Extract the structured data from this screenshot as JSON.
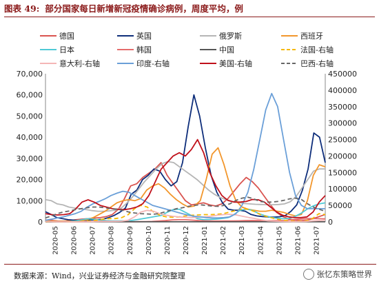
{
  "header": {
    "label": "图表 49:",
    "title": "部分国家每日新增新冠疫情确诊病例，周度平均，例"
  },
  "footer": {
    "source": "数据来源：Wind，兴业证券经济与金融研究院整理",
    "watermark": "张忆东策略世界"
  },
  "chart_data": {
    "type": "line",
    "x_labels": [
      "2020-05",
      "2020-06",
      "2020-07",
      "2020-08",
      "2020-09",
      "2020-10",
      "2020-11",
      "2020-12",
      "2021-01",
      "2021-02",
      "2021-03",
      "2021-04",
      "2021-05",
      "2021-06",
      "2021-07"
    ],
    "left_axis": {
      "min": 0,
      "max": 70000,
      "ticks": [
        0,
        10000,
        20000,
        30000,
        40000,
        50000,
        60000,
        70000
      ]
    },
    "right_axis": {
      "min": 0,
      "max": 450000,
      "ticks": [
        0,
        50000,
        100000,
        150000,
        200000,
        250000,
        300000,
        350000,
        400000,
        450000
      ]
    },
    "grid": false,
    "legend_position": "top",
    "series": [
      {
        "name": "德国",
        "color": "#d9534f",
        "dash": "",
        "axis": "left",
        "values": [
          900,
          700,
          400,
          350,
          600,
          1000,
          1300,
          1500,
          1800,
          2000,
          2500,
          3500,
          6000,
          11000,
          17000,
          18000,
          21000,
          23000,
          25000,
          28000,
          22000,
          18000,
          14000,
          10000,
          8000,
          8500,
          9000,
          8000,
          7500,
          8500,
          11000,
          14500,
          18000,
          21000,
          19000,
          16000,
          12000,
          8000,
          4500,
          2500,
          1400,
          800,
          600,
          800,
          1500,
          2500,
          3500
        ]
      },
      {
        "name": "英国",
        "color": "#0d2d7a",
        "dash": "",
        "axis": "left",
        "values": [
          4800,
          3500,
          2000,
          1500,
          1000,
          800,
          600,
          700,
          900,
          1000,
          1200,
          2000,
          3000,
          4500,
          6500,
          13000,
          15000,
          20000,
          22000,
          25000,
          24000,
          20000,
          17000,
          19000,
          28000,
          45000,
          60000,
          50000,
          35000,
          22000,
          14000,
          9000,
          6000,
          5500,
          5500,
          5000,
          3500,
          2800,
          2500,
          2300,
          2200,
          2400,
          3000,
          5000,
          8000,
          15000,
          25000,
          42000,
          40000,
          28000
        ]
      },
      {
        "name": "俄罗斯",
        "color": "#b5b5b5",
        "dash": "",
        "axis": "left",
        "values": [
          10500,
          10000,
          8500,
          8000,
          7000,
          6500,
          6200,
          5800,
          5300,
          5000,
          5000,
          5200,
          5500,
          6500,
          9000,
          12000,
          15500,
          19000,
          22000,
          25000,
          27500,
          28500,
          28000,
          26000,
          24000,
          22000,
          20000,
          17500,
          15000,
          13000,
          11500,
          10500,
          9700,
          9200,
          8700,
          8500,
          8300,
          8200,
          8100,
          8100,
          8200,
          8500,
          9500,
          12000,
          16000,
          20000,
          24000,
          25000,
          25000
        ]
      },
      {
        "name": "西班牙",
        "color": "#f2962b",
        "dash": "",
        "axis": "left",
        "values": [
          400,
          350,
          300,
          300,
          300,
          400,
          600,
          1000,
          2000,
          3500,
          5000,
          7000,
          9000,
          10000,
          10500,
          10000,
          11000,
          15000,
          17000,
          18000,
          16000,
          13000,
          10500,
          8500,
          7000,
          7500,
          10000,
          20000,
          32000,
          35000,
          27000,
          17000,
          10000,
          7000,
          6000,
          5500,
          5000,
          5000,
          5500,
          5000,
          4500,
          3500,
          2800,
          3500,
          10000,
          22000,
          27000,
          26000
        ]
      },
      {
        "name": "日本",
        "color": "#4fc9d6",
        "dash": "",
        "axis": "left",
        "values": [
          50,
          50,
          50,
          50,
          100,
          500,
          1000,
          1500,
          1200,
          800,
          600,
          500,
          500,
          500,
          600,
          1000,
          1500,
          2000,
          2500,
          3000,
          4500,
          5800,
          6000,
          4500,
          3000,
          1500,
          1000,
          1100,
          1300,
          1600,
          2000,
          3500,
          5500,
          6000,
          5500,
          4000,
          3000,
          2200,
          1700,
          1500,
          1600,
          2500,
          4000,
          6000,
          7500,
          8500,
          9000
        ]
      },
      {
        "name": "韩国",
        "color": "#e56b6b",
        "dash": "",
        "axis": "left",
        "values": [
          30,
          40,
          50,
          40,
          40,
          50,
          50,
          100,
          250,
          300,
          200,
          120,
          100,
          80,
          100,
          120,
          200,
          400,
          600,
          900,
          1000,
          1000,
          800,
          600,
          450,
          400,
          400,
          420,
          450,
          500,
          600,
          650,
          600,
          550,
          550,
          600,
          700,
          1000,
          1300,
          1500,
          1600,
          1500,
          1400
        ]
      },
      {
        "name": "中国",
        "color": "#555555",
        "dash": "",
        "axis": "left",
        "values": [
          20,
          20,
          20,
          20,
          20,
          20,
          20,
          20,
          20,
          20,
          20,
          20,
          20,
          20,
          20,
          20,
          20,
          20,
          20,
          20,
          20,
          20,
          20,
          20,
          20,
          20,
          20,
          20,
          20,
          20,
          20,
          20,
          20,
          20,
          20,
          20,
          20,
          20,
          20,
          20,
          20,
          20,
          20,
          20,
          20,
          20,
          20,
          20,
          20
        ]
      },
      {
        "name": "法国-右轴",
        "color": "#f5b800",
        "dash": "6,4",
        "axis": "right",
        "values": [
          900,
          700,
          500,
          400,
          500,
          700,
          1500,
          3000,
          5000,
          8000,
          10000,
          10000,
          13000,
          22000,
          40000,
          50000,
          45000,
          30000,
          20000,
          15000,
          14000,
          15000,
          18000,
          20000,
          21000,
          22000,
          22000,
          23000,
          25000,
          30000,
          35000,
          40000,
          38000,
          30000,
          20000,
          15000,
          10000,
          6000,
          3500,
          2500,
          2000,
          3000,
          10000,
          25000,
          22000
        ]
      },
      {
        "name": "意大利-右轴",
        "color": "#f4b6b6",
        "dash": "",
        "axis": "right",
        "values": [
          1200,
          800,
          500,
          400,
          300,
          300,
          400,
          600,
          1000,
          1300,
          1500,
          1600,
          2000,
          5000,
          15000,
          30000,
          35000,
          32000,
          25000,
          20000,
          17000,
          15000,
          14000,
          13000,
          14000,
          15000,
          17000,
          20000,
          22000,
          23000,
          21000,
          17000,
          13000,
          10000,
          6000,
          3000,
          2000,
          1200,
          1000,
          900,
          1000,
          1500,
          3000,
          4000,
          5000
        ]
      },
      {
        "name": "印度-右轴",
        "color": "#6a9fd8",
        "dash": "",
        "axis": "right",
        "values": [
          5000,
          8000,
          12000,
          15000,
          20000,
          25000,
          32000,
          45000,
          55000,
          62000,
          70000,
          80000,
          87000,
          93000,
          90000,
          80000,
          70000,
          60000,
          50000,
          45000,
          40000,
          35000,
          30000,
          25000,
          20000,
          17000,
          15000,
          13000,
          12000,
          12000,
          13000,
          15000,
          25000,
          50000,
          90000,
          160000,
          250000,
          340000,
          390000,
          350000,
          250000,
          150000,
          80000,
          50000,
          40000,
          40000,
          40000,
          40000
        ]
      },
      {
        "name": "美国-右轴",
        "color": "#c0101a",
        "dash": "",
        "axis": "right",
        "values": [
          25000,
          22000,
          21000,
          22000,
          25000,
          40000,
          60000,
          67000,
          60000,
          50000,
          45000,
          40000,
          38000,
          37000,
          40000,
          45000,
          55000,
          80000,
          120000,
          160000,
          180000,
          200000,
          210000,
          200000,
          220000,
          250000,
          210000,
          150000,
          110000,
          80000,
          65000,
          60000,
          60000,
          62000,
          68000,
          67000,
          60000,
          45000,
          30000,
          20000,
          15000,
          13000,
          13000,
          15000,
          30000,
          60000,
          80000
        ]
      },
      {
        "name": "巴西-右轴",
        "color": "#666666",
        "dash": "6,4",
        "axis": "right",
        "values": [
          12000,
          18000,
          25000,
          30000,
          33000,
          37000,
          40000,
          43000,
          45000,
          45000,
          43000,
          40000,
          38000,
          35000,
          30000,
          27000,
          25000,
          24000,
          23000,
          25000,
          30000,
          35000,
          40000,
          43000,
          47000,
          50000,
          52000,
          50000,
          48000,
          47000,
          50000,
          55000,
          65000,
          72000,
          75000,
          70000,
          62000,
          60000,
          60000,
          62000,
          65000,
          70000,
          72000,
          68000,
          55000,
          45000,
          38000,
          32000
        ]
      }
    ]
  }
}
